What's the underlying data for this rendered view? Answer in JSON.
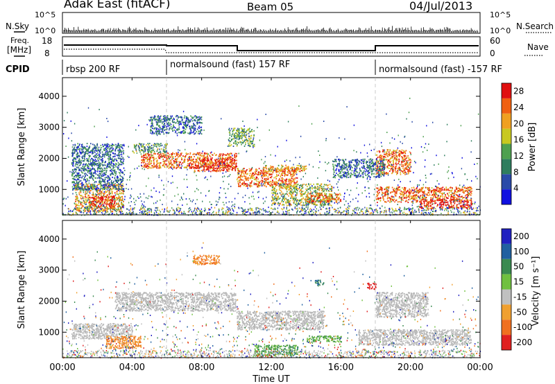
{
  "header": {
    "station": "Adak East (fitACF)",
    "beam": "Beam 05",
    "date": "04/Jul/2013"
  },
  "panels": {
    "nsky": {
      "left_label": "N.Sky",
      "right_label": "N.Search",
      "ticks": [
        "10^5",
        "10^0"
      ]
    },
    "freq": {
      "left_label_line1": "Freq.",
      "left_label_line2": "[MHz]",
      "left_ticks": [
        "18",
        "8"
      ],
      "right_label": "Nave",
      "right_ticks": [
        "60",
        "0"
      ]
    },
    "cpid": {
      "label": "CPID",
      "segments": [
        {
          "name": "rbsp 200 RF",
          "start_h": 0
        },
        {
          "name": "normalsound (fast) 157 RF",
          "start_h": 6
        },
        {
          "name": "normalsound (fast) -157 RF",
          "start_h": 18
        }
      ]
    }
  },
  "colors": {
    "power_scale": [
      "#1010e0",
      "#2a4aa8",
      "#2e7d5e",
      "#4fa050",
      "#c8c820",
      "#f0a020",
      "#f06010",
      "#e01010"
    ],
    "velocity_scale": [
      "#2020c0",
      "#2060a0",
      "#3a8a50",
      "#70c040",
      "#c0c0c0",
      "#f0a030",
      "#f07020",
      "#e02020"
    ],
    "ground_scatter": "#b8b8b8"
  },
  "chart_data": [
    {
      "type": "heatmap",
      "name": "power",
      "ylabel": "Slant Range [km]",
      "xlabel": "Time UT",
      "xlim": [
        0,
        24
      ],
      "ylim": [
        180,
        4600
      ],
      "x_ticks": [
        "00:00",
        "04:00",
        "08:00",
        "12:00",
        "16:00",
        "20:00",
        "00:00"
      ],
      "y_ticks": [
        1000,
        2000,
        3000,
        4000
      ],
      "colorbar": {
        "label": "Power [dB]",
        "ticks": [
          "4",
          "8",
          "12",
          "16",
          "20",
          "24",
          "28"
        ],
        "range": [
          0,
          30
        ]
      },
      "regions": [
        {
          "t": [
            0.7,
            3.5
          ],
          "r": [
            300,
            1200
          ],
          "level": 20
        },
        {
          "t": [
            1.5,
            3.0
          ],
          "r": [
            400,
            800
          ],
          "level": 28
        },
        {
          "t": [
            4.5,
            10.0
          ],
          "r": [
            1700,
            2200
          ],
          "level": 24
        },
        {
          "t": [
            7.5,
            10.0
          ],
          "r": [
            1600,
            2000
          ],
          "level": 28
        },
        {
          "t": [
            4.0,
            6.0
          ],
          "r": [
            2200,
            2500
          ],
          "level": 12
        },
        {
          "t": [
            10.0,
            13.5
          ],
          "r": [
            1100,
            1700
          ],
          "level": 24
        },
        {
          "t": [
            11.5,
            14.0
          ],
          "r": [
            1600,
            1800
          ],
          "level": 20
        },
        {
          "t": [
            12.0,
            15.5
          ],
          "r": [
            500,
            1200
          ],
          "level": 16
        },
        {
          "t": [
            14.0,
            16.0
          ],
          "r": [
            600,
            900
          ],
          "level": 24
        },
        {
          "t": [
            18.0,
            20.0
          ],
          "r": [
            1500,
            2300
          ],
          "level": 24
        },
        {
          "t": [
            18.0,
            23.5
          ],
          "r": [
            600,
            1100
          ],
          "level": 24
        },
        {
          "t": [
            20.5,
            23.5
          ],
          "r": [
            400,
            700
          ],
          "level": 28
        },
        {
          "t": [
            0.5,
            3.5
          ],
          "r": [
            1000,
            2500
          ],
          "level": 8
        },
        {
          "t": [
            5.0,
            8.0
          ],
          "r": [
            2800,
            3400
          ],
          "level": 8
        },
        {
          "t": [
            9.5,
            11.0
          ],
          "r": [
            2400,
            3000
          ],
          "level": 12
        },
        {
          "t": [
            15.5,
            18.5
          ],
          "r": [
            1400,
            2000
          ],
          "level": 8
        }
      ]
    },
    {
      "type": "heatmap",
      "name": "velocity",
      "ylabel": "Slant Range [km]",
      "xlabel": "Time UT",
      "xlim": [
        0,
        24
      ],
      "ylim": [
        180,
        4600
      ],
      "x_ticks": [
        "00:00",
        "04:00",
        "08:00",
        "12:00",
        "16:00",
        "20:00",
        "00:00"
      ],
      "y_ticks": [
        1000,
        2000,
        3000,
        4000
      ],
      "colorbar": {
        "label": "Velocity [m s⁻¹]",
        "ticks": [
          "200",
          "100",
          "50",
          "15",
          "-15",
          "-50",
          "-100",
          "-200"
        ]
      },
      "regions": [
        {
          "t": [
            0.5,
            4.0
          ],
          "r": [
            800,
            1300
          ],
          "kind": "ground"
        },
        {
          "t": [
            3.0,
            10.0
          ],
          "r": [
            1700,
            2300
          ],
          "kind": "ground"
        },
        {
          "t": [
            10.0,
            15.0
          ],
          "r": [
            1100,
            1700
          ],
          "kind": "ground"
        },
        {
          "t": [
            17.0,
            23.5
          ],
          "r": [
            600,
            1100
          ],
          "kind": "ground"
        },
        {
          "t": [
            18.0,
            21.0
          ],
          "r": [
            1500,
            2300
          ],
          "kind": "ground"
        },
        {
          "t": [
            2.5,
            4.5
          ],
          "r": [
            500,
            900
          ],
          "v": -50
        },
        {
          "t": [
            11.0,
            13.5
          ],
          "r": [
            250,
            600
          ],
          "v": 50
        },
        {
          "t": [
            14.0,
            16.0
          ],
          "r": [
            700,
            900
          ],
          "v": 50
        },
        {
          "t": [
            7.5,
            9.0
          ],
          "r": [
            3200,
            3500
          ],
          "v": -50
        },
        {
          "t": [
            14.5,
            15.0
          ],
          "r": [
            2500,
            2700
          ],
          "v": 100
        },
        {
          "t": [
            17.5,
            18.0
          ],
          "r": [
            2400,
            2600
          ],
          "v": -200
        }
      ]
    }
  ]
}
